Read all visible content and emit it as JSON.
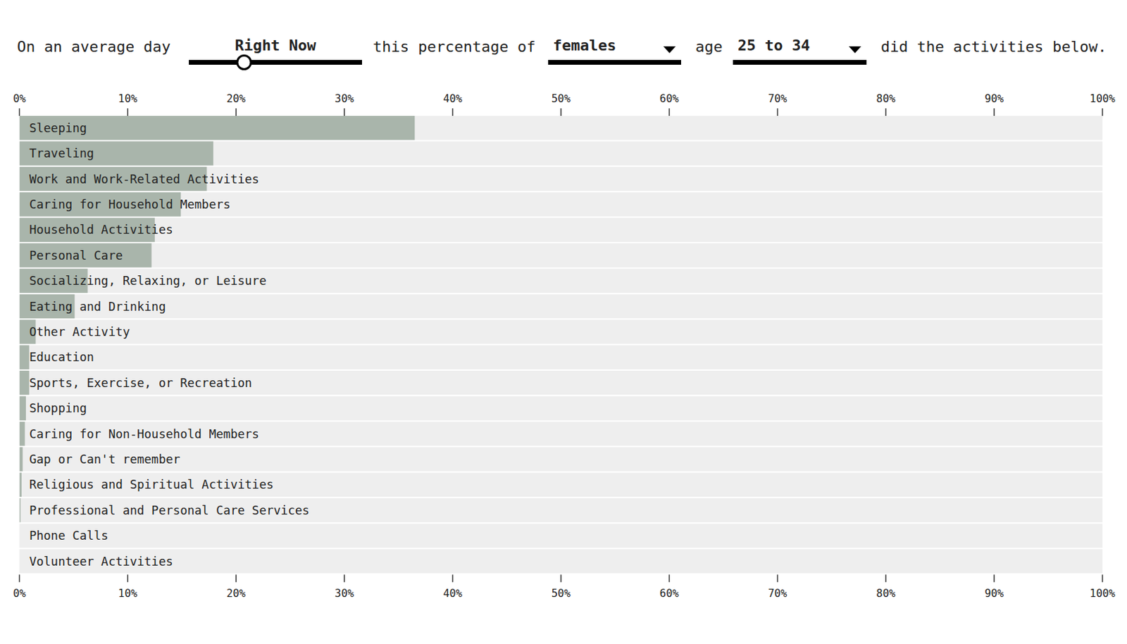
{
  "header": {
    "lead": "On an average day",
    "time": "Right Now",
    "middle": "this percentage of",
    "group": "females",
    "age_word": "age",
    "age": "25 to 34",
    "tail": "did the activities below."
  },
  "chart_data": {
    "type": "bar",
    "orientation": "horizontal",
    "color": "#a9b5ab",
    "categories": [
      "Sleeping",
      "Traveling",
      "Work and Work-Related Activities",
      "Caring for Household Members",
      "Household Activities",
      "Personal Care",
      "Socializing, Relaxing, or Leisure",
      "Eating and Drinking",
      "Other Activity",
      "Education",
      "Sports, Exercise, or Recreation",
      "Shopping",
      "Caring for Non-Household Members",
      "Gap or Can't remember",
      "Religious and Spiritual Activities",
      "Professional and Personal Care Services",
      "Phone Calls",
      "Volunteer Activities"
    ],
    "values": [
      36.5,
      17.9,
      17.3,
      14.9,
      12.5,
      12.2,
      6.3,
      5.1,
      1.5,
      0.9,
      0.9,
      0.6,
      0.5,
      0.3,
      0.2,
      0.1,
      0,
      0
    ],
    "xlim": [
      0,
      100
    ],
    "xticks": [
      {
        "value": 0,
        "label": "0%"
      },
      {
        "value": 10,
        "label": "10%"
      },
      {
        "value": 20,
        "label": "20%"
      },
      {
        "value": 30,
        "label": "30%"
      },
      {
        "value": 40,
        "label": "40%"
      },
      {
        "value": 50,
        "label": "50%"
      },
      {
        "value": 60,
        "label": "60%"
      },
      {
        "value": 70,
        "label": "70%"
      },
      {
        "value": 80,
        "label": "80%"
      },
      {
        "value": 90,
        "label": "90%"
      },
      {
        "value": 100,
        "label": "100%"
      }
    ]
  }
}
